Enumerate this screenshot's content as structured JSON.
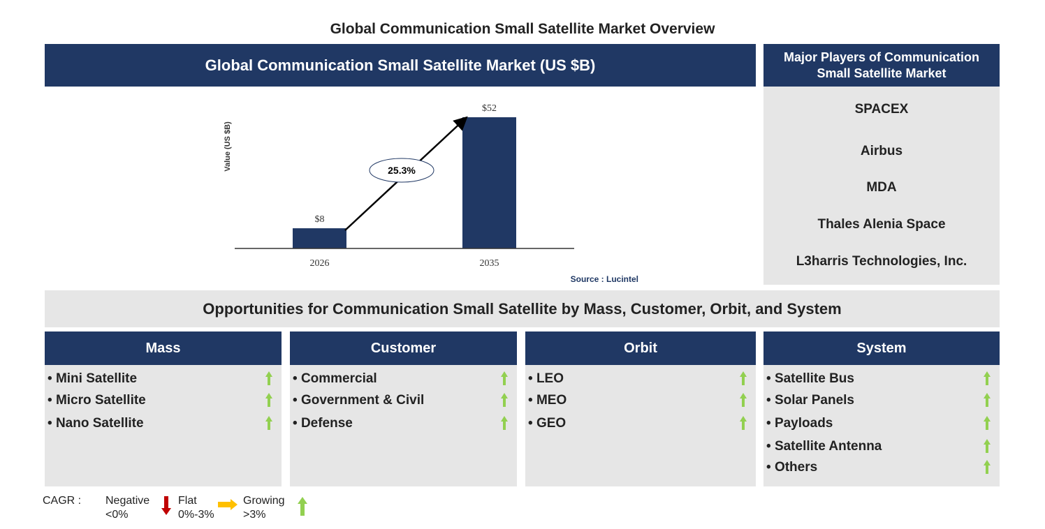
{
  "title": "Global Communication Small Satellite Market Overview",
  "market_header": "Global Communication Small Satellite Market (US $B)",
  "players_header": "Major Players of Communication Small Satellite Market",
  "players": [
    "SPACEX",
    "Airbus",
    "MDA",
    "Thales Alenia Space",
    "L3harris Technologies, Inc."
  ],
  "chart_data": {
    "type": "bar",
    "categories": [
      "2026",
      "2035"
    ],
    "values": [
      8,
      52
    ],
    "data_labels": [
      "$8",
      "$52"
    ],
    "ylabel": "Value (US $B)",
    "cagr_label": "25.3%",
    "bar_color": "#203864",
    "source": "Source : Lucintel"
  },
  "opportunities_header": "Opportunities for Communication Small Satellite by Mass, Customer, Orbit, and System",
  "segments": [
    {
      "label": "Mass",
      "items": [
        "Mini Satellite",
        "Micro Satellite",
        "Nano Satellite"
      ],
      "trends": [
        "growing",
        "growing",
        "growing"
      ]
    },
    {
      "label": "Customer",
      "items": [
        "Commercial",
        "Government & Civil",
        "Defense"
      ],
      "trends": [
        "growing",
        "growing",
        "growing"
      ]
    },
    {
      "label": "Orbit",
      "items": [
        "LEO",
        "MEO",
        "GEO"
      ],
      "trends": [
        "growing",
        "growing",
        "growing"
      ]
    },
    {
      "label": "System",
      "items": [
        "Satellite Bus",
        "Solar Panels",
        "Payloads",
        "Satellite Antenna",
        "Others"
      ],
      "trends": [
        "growing",
        "growing",
        "growing",
        "growing",
        "growing"
      ]
    }
  ],
  "legend": {
    "label": "CAGR :",
    "negative": "Negative",
    "negative_range": "<0%",
    "flat": "Flat",
    "flat_range": "0%-3%",
    "growing": "Growing",
    "growing_range": ">3%",
    "colors": {
      "negative": "#c00000",
      "flat": "#ffc000",
      "growing": "#92d050"
    }
  }
}
